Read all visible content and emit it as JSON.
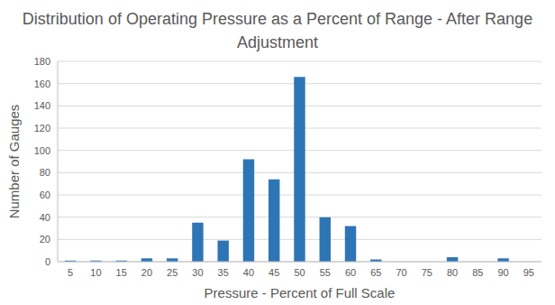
{
  "chart_data": {
    "type": "bar",
    "title": "Distribution of Operating Pressure as a Percent of Range - After Range Adjustment",
    "x_label": "Pressure - Percent of Full Scale",
    "y_label": "Number of Gauges",
    "categories": [
      5,
      10,
      15,
      20,
      25,
      30,
      35,
      40,
      45,
      50,
      55,
      60,
      65,
      70,
      75,
      80,
      85,
      90,
      95
    ],
    "values": [
      1,
      1,
      1,
      3,
      3,
      35,
      19,
      92,
      74,
      166,
      40,
      32,
      2,
      0,
      0,
      4,
      0,
      3,
      0
    ],
    "color": "#2e75b6",
    "ylim": [
      0,
      180
    ],
    "yticks": [
      0,
      20,
      40,
      60,
      80,
      100,
      120,
      140,
      160,
      180
    ],
    "grid": true
  }
}
